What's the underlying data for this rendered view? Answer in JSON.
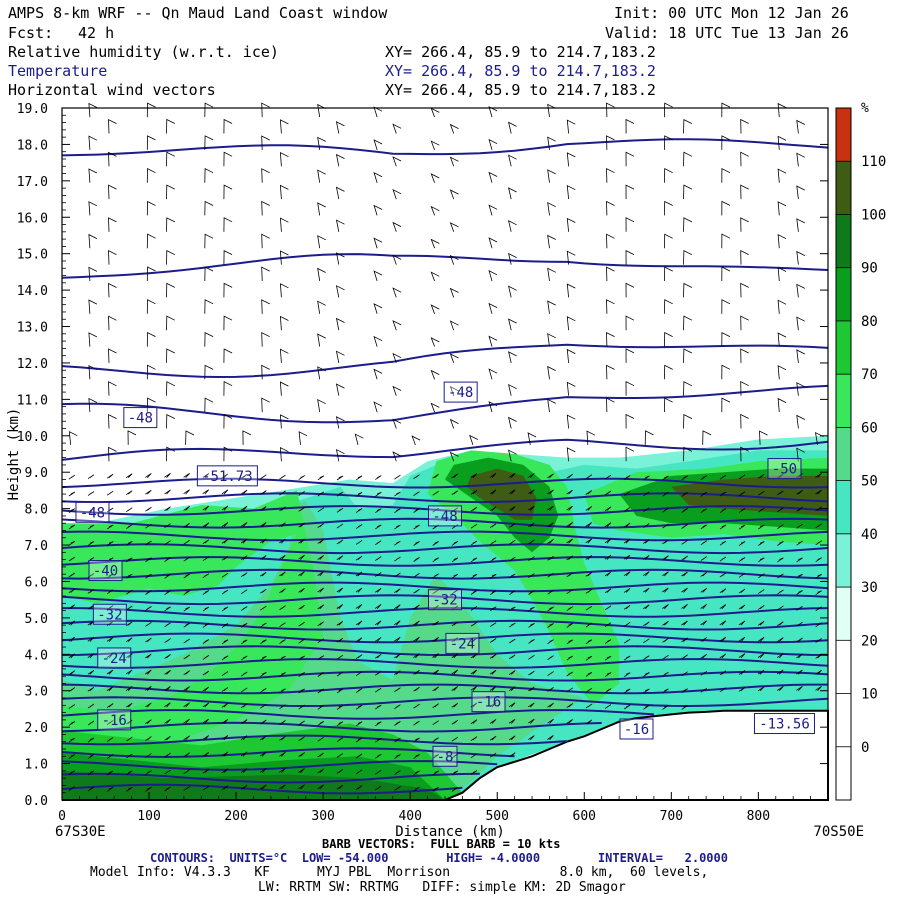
{
  "header": {
    "title": "AMPS 8-km WRF -- Qn Maud Land Coast window",
    "init": "Init: 00 UTC Mon 12 Jan 26",
    "fcst_label": "Fcst:",
    "fcst_hours": "42 h",
    "valid": "Valid: 18 UTC Tue 13 Jan 26",
    "fields": [
      {
        "name": "Relative humidity (w.r.t. ice)",
        "xy": "XY= 266.4, 85.9 to 214.7,183.2",
        "color": "#000000"
      },
      {
        "name": "Temperature",
        "xy": "XY= 266.4, 85.9 to 214.7,183.2",
        "color": "#1c1c8c"
      },
      {
        "name": "Horizontal wind vectors",
        "xy": "XY= 266.4, 85.9 to 214.7,183.2",
        "color": "#000000"
      }
    ]
  },
  "chart_data": {
    "type": "cross-section",
    "xlabel": "Distance (km)",
    "ylabel": "Height (km)",
    "xlim": [
      0,
      880
    ],
    "ylim": [
      0,
      19
    ],
    "x_ticks": [
      0,
      100,
      200,
      300,
      400,
      500,
      600,
      700,
      800
    ],
    "y_ticks": [
      "0.0",
      "1.0",
      "2.0",
      "3.0",
      "4.0",
      "5.0",
      "6.0",
      "7.0",
      "8.0",
      "9.0",
      "10.0",
      "11.0",
      "12.0",
      "13.0",
      "14.0",
      "15.0",
      "16.0",
      "17.0",
      "18.0",
      "19.0"
    ],
    "left_endpoint": "67S30E",
    "right_endpoint": "70S50E",
    "colorbar": {
      "unit": "%",
      "levels": [
        0,
        10,
        20,
        30,
        40,
        50,
        60,
        70,
        80,
        90,
        100,
        110
      ],
      "colors": [
        "#ffffff",
        "#ffffff",
        "#ffffff",
        "#e0fff5",
        "#7af2d8",
        "#46e6c3",
        "#55d98a",
        "#38e85a",
        "#1ec832",
        "#0a9e1e",
        "#0e7a1a",
        "#3e5c14",
        "#c83210"
      ]
    },
    "terrain_km": [
      [
        0,
        0
      ],
      [
        440,
        0
      ],
      [
        460,
        0.2
      ],
      [
        480,
        0.6
      ],
      [
        500,
        0.9
      ],
      [
        520,
        1.05
      ],
      [
        540,
        1.2
      ],
      [
        560,
        1.4
      ],
      [
        580,
        1.6
      ],
      [
        600,
        1.75
      ],
      [
        620,
        1.95
      ],
      [
        640,
        2.15
      ],
      [
        660,
        2.25
      ],
      [
        680,
        2.3
      ],
      [
        700,
        2.35
      ],
      [
        720,
        2.4
      ],
      [
        740,
        2.42
      ],
      [
        760,
        2.45
      ],
      [
        880,
        2.45
      ]
    ],
    "temperature_contours": {
      "units": "°C",
      "low": -54,
      "high": -4,
      "interval": 2,
      "labels": [
        {
          "text": "-48",
          "x": 90,
          "y": 10.5
        },
        {
          "text": "-48",
          "x": 458,
          "y": 11.2
        },
        {
          "text": "-48",
          "x": 35,
          "y": 7.9
        },
        {
          "text": "-48",
          "x": 440,
          "y": 7.8
        },
        {
          "text": "-51.73",
          "x": 190,
          "y": 8.9
        },
        {
          "text": "-40",
          "x": 50,
          "y": 6.3
        },
        {
          "text": "-32",
          "x": 55,
          "y": 5.1
        },
        {
          "text": "-32",
          "x": 440,
          "y": 5.5
        },
        {
          "text": "-24",
          "x": 60,
          "y": 3.9
        },
        {
          "text": "-24",
          "x": 460,
          "y": 4.3
        },
        {
          "text": "-16",
          "x": 60,
          "y": 2.2
        },
        {
          "text": "-16",
          "x": 490,
          "y": 2.7
        },
        {
          "text": "-16",
          "x": 660,
          "y": 1.95
        },
        {
          "text": "-8",
          "x": 440,
          "y": 1.2
        },
        {
          "text": "-13.56",
          "x": 830,
          "y": 2.1
        },
        {
          "text": "-50",
          "x": 830,
          "y": 9.1
        }
      ]
    },
    "rh_blobs": [
      {
        "comment": "lower moist layer",
        "color": "#46e6c3"
      }
    ],
    "barb_note": "BARB VECTORS:  FULL BARB = 10 kts"
  },
  "footer": {
    "barb": "BARB VECTORS:  FULL BARB = 10 kts",
    "contours": "CONTOURS:  UNITS=°C  LOW= -54.000        HIGH= -4.0000        INTERVAL=   2.0000",
    "model_info": "Model Info: V4.3.3   KF      MYJ PBL  Morrison              8.0 km,  60 levels,",
    "model_info2": "LW: RRTM SW: RRTMG   DIFF: simple KM: 2D Smagor"
  }
}
